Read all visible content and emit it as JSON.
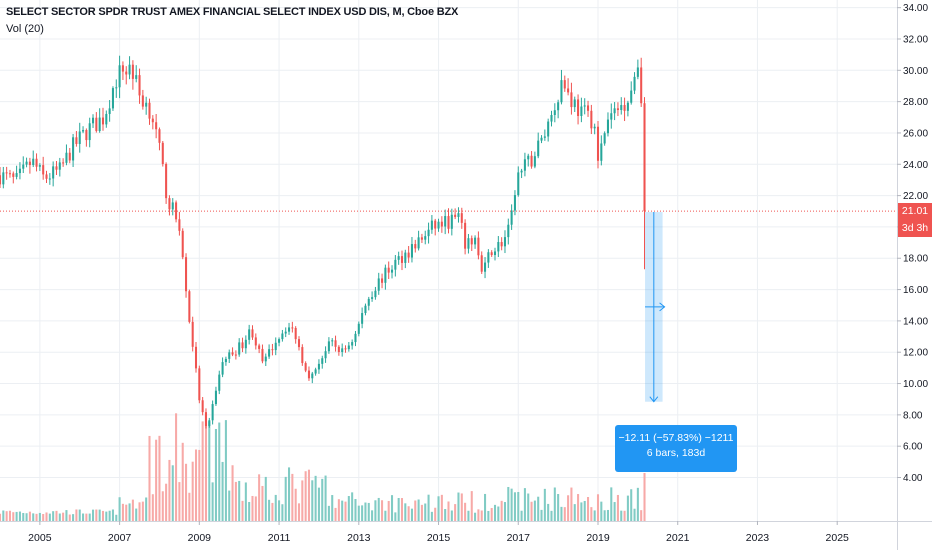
{
  "legend": {
    "title": "SELECT SECTOR SPDR TRUST AMEX FINANCIAL SELECT INDEX USD DIS, M, Cboe BZX",
    "volume": "Vol (20)"
  },
  "price_tags": {
    "last_price": "21.01",
    "countdown": "3d 3h"
  },
  "measure": {
    "line1": "−12.11 (−57.83%) −1211",
    "line2": "6 bars, 183d"
  },
  "colors": {
    "up": "#26a69a",
    "down": "#ef5350",
    "up_volume": "#80cbc4",
    "down_volume": "#f7a9a7",
    "measure": "#2196f3",
    "grid": "#eceff3"
  },
  "chart_data": {
    "type": "candlestick",
    "interval": "monthly",
    "y_axis": {
      "range": [
        2.5,
        35
      ],
      "ticks": [
        4,
        6,
        8,
        10,
        12,
        14,
        16,
        18,
        20,
        22,
        24,
        26,
        28,
        30,
        32,
        34
      ],
      "labels": [
        "4.00",
        "6.00",
        "8.00",
        "10.00",
        "12.00",
        "14.00",
        "16.00",
        "18.00",
        "20.00",
        "22.00",
        "24.00",
        "26.00",
        "28.00",
        "30.00",
        "32.00",
        "34.00"
      ]
    },
    "x_axis": {
      "range": [
        2004.0,
        2026.5
      ],
      "ticks": [
        2005,
        2007,
        2009,
        2011,
        2013,
        2015,
        2017,
        2019,
        2021,
        2023,
        2025
      ],
      "labels": [
        "2005",
        "2007",
        "2009",
        "2011",
        "2013",
        "2015",
        "2017",
        "2019",
        "2021",
        "2023",
        "2025"
      ]
    },
    "last_price": 21.01,
    "measure": {
      "from_price": 20.95,
      "to_price": 8.84,
      "change": -12.11,
      "change_pct": -57.83,
      "bars": 6,
      "days": 183
    },
    "close_anchors": [
      [
        2004.0,
        23.3
      ],
      [
        2004.4,
        22.9
      ],
      [
        2004.8,
        24.2
      ],
      [
        2005.1,
        23.1
      ],
      [
        2005.5,
        23.6
      ],
      [
        2005.8,
        25.0
      ],
      [
        2006.2,
        26.2
      ],
      [
        2006.6,
        27.0
      ],
      [
        2006.9,
        29.4
      ],
      [
        2007.1,
        30.1
      ],
      [
        2007.3,
        30.2
      ],
      [
        2007.5,
        28.4
      ],
      [
        2007.8,
        27.4
      ],
      [
        2008.0,
        24.8
      ],
      [
        2008.2,
        21.8
      ],
      [
        2008.5,
        20.1
      ],
      [
        2008.7,
        15.0
      ],
      [
        2008.85,
        12.2
      ],
      [
        2009.0,
        9.0
      ],
      [
        2009.2,
        6.8
      ],
      [
        2009.4,
        9.5
      ],
      [
        2009.6,
        11.5
      ],
      [
        2009.9,
        12.1
      ],
      [
        2010.1,
        12.6
      ],
      [
        2010.3,
        13.5
      ],
      [
        2010.6,
        11.2
      ],
      [
        2010.9,
        12.7
      ],
      [
        2011.2,
        13.7
      ],
      [
        2011.4,
        13.2
      ],
      [
        2011.6,
        11.4
      ],
      [
        2011.8,
        10.3
      ],
      [
        2012.0,
        11.4
      ],
      [
        2012.3,
        12.6
      ],
      [
        2012.6,
        12.0
      ],
      [
        2012.9,
        13.0
      ],
      [
        2013.2,
        15.3
      ],
      [
        2013.5,
        16.5
      ],
      [
        2013.9,
        17.7
      ],
      [
        2014.3,
        18.6
      ],
      [
        2014.6,
        19.3
      ],
      [
        2014.9,
        20.1
      ],
      [
        2015.2,
        20.3
      ],
      [
        2015.5,
        20.6
      ],
      [
        2015.7,
        18.6
      ],
      [
        2015.9,
        19.5
      ],
      [
        2016.1,
        16.8
      ],
      [
        2016.3,
        18.5
      ],
      [
        2016.6,
        19.0
      ],
      [
        2016.8,
        19.9
      ],
      [
        2016.95,
        23.1
      ],
      [
        2017.3,
        24.2
      ],
      [
        2017.6,
        25.6
      ],
      [
        2017.9,
        27.7
      ],
      [
        2018.1,
        29.4
      ],
      [
        2018.3,
        28.3
      ],
      [
        2018.6,
        27.2
      ],
      [
        2018.9,
        26.9
      ],
      [
        2019.0,
        23.9
      ],
      [
        2019.2,
        26.6
      ],
      [
        2019.5,
        27.5
      ],
      [
        2019.8,
        28.5
      ],
      [
        2020.0,
        30.5
      ],
      [
        2020.1,
        28.2
      ],
      [
        2020.2,
        21.0
      ]
    ]
  }
}
